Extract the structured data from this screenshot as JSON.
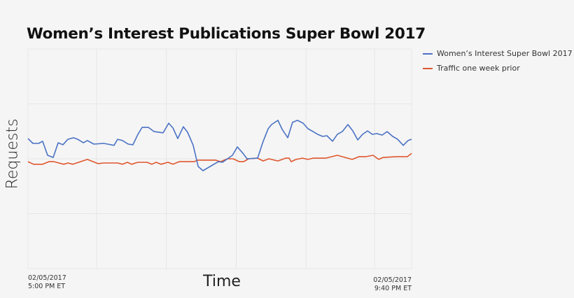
{
  "chart_data": {
    "type": "line",
    "title": "Women’s Interest Publications Super Bowl 2017",
    "xlabel": "Time",
    "ylabel": "Requests",
    "x_unit": "minutes after 02/05/2017 5:00 PM ET",
    "x_ticks": [
      {
        "label_date": "02/05/2017",
        "label_time": "5:00 PM ET",
        "minute": 0
      },
      {
        "label_date": "02/05/2017",
        "label_time": "9:40 PM ET",
        "minute": 280
      }
    ],
    "xlim": [
      0,
      280
    ],
    "ylim": [
      0,
      100
    ],
    "y_note": "relative scale (no numeric y tick labels shown)",
    "grid": true,
    "y_gridlines": [
      0,
      25,
      50,
      75,
      100
    ],
    "x_gridlines": [
      0,
      50,
      101,
      152,
      203,
      253,
      280
    ],
    "legend_position": "top-right, outside plot",
    "series": [
      {
        "name": "Women’s Interest Super Bowl 2017",
        "color": "#4a72c4",
        "x": [
          0,
          3.6,
          7.7,
          10.7,
          14.3,
          18.4,
          22.0,
          25.5,
          29.1,
          33.2,
          36.3,
          40.4,
          43.4,
          48.0,
          55.2,
          58.2,
          62.8,
          65.4,
          69.0,
          73.1,
          76.6,
          80.2,
          83.3,
          87.9,
          92.0,
          98.6,
          102.7,
          105.8,
          109.3,
          113.4,
          116.5,
          120.6,
          124.2,
          127.7,
          139.0,
          142.0,
          149.2,
          152.8,
          156.9,
          159.9,
          167.6,
          171.7,
          175.3,
          177.8,
          182.4,
          185.5,
          189.6,
          193.1,
          196.7,
          200.8,
          204.4,
          208.0,
          211.5,
          215.1,
          218.2,
          222.3,
          225.8,
          229.4,
          233.5,
          237.1,
          240.7,
          244.2,
          247.8,
          251.4,
          254.5,
          258.5,
          262.1,
          266.2,
          269.8,
          273.9,
          277.4,
          280.0
        ],
        "values": [
          59.2,
          57.0,
          57.0,
          58.0,
          51.6,
          50.6,
          57.3,
          56.4,
          58.9,
          59.6,
          58.9,
          57.3,
          58.3,
          56.7,
          57.0,
          56.7,
          56.1,
          58.9,
          58.3,
          56.7,
          56.4,
          61.1,
          64.3,
          64.3,
          62.4,
          61.8,
          66.2,
          64.0,
          59.2,
          64.6,
          62.1,
          56.1,
          46.5,
          44.6,
          48.7,
          48.4,
          51.6,
          55.4,
          52.5,
          50.0,
          50.3,
          58.0,
          63.7,
          65.6,
          67.5,
          63.4,
          59.6,
          66.6,
          67.5,
          66.2,
          63.7,
          62.4,
          61.1,
          60.2,
          60.5,
          58.0,
          61.1,
          62.4,
          65.6,
          62.7,
          58.6,
          61.1,
          62.7,
          61.1,
          61.5,
          60.8,
          62.4,
          60.2,
          58.9,
          56.1,
          58.3,
          58.9
        ]
      },
      {
        "name": "Traffic one week prior",
        "color": "#e0572e",
        "x": [
          0,
          4.1,
          10.7,
          15.3,
          18.9,
          26.1,
          29.1,
          32.7,
          43.4,
          51.1,
          55.2,
          65.4,
          69.0,
          72.6,
          75.6,
          80.2,
          86.9,
          90.4,
          93.5,
          97.1,
          102.2,
          105.8,
          110.4,
          121.1,
          124.2,
          136.9,
          140.5,
          145.6,
          149.7,
          154.3,
          157.4,
          161.0,
          167.6,
          171.7,
          175.8,
          182.4,
          188.0,
          190.6,
          192.1,
          195.7,
          200.3,
          204.4,
          208.0,
          217.2,
          225.8,
          236.6,
          241.7,
          246.8,
          251.9,
          256.0,
          259.1,
          269.3,
          277.0,
          280.0
        ],
        "values": [
          48.7,
          47.5,
          47.5,
          48.7,
          48.7,
          47.5,
          48.1,
          47.5,
          49.7,
          47.8,
          48.1,
          48.1,
          47.5,
          48.4,
          47.5,
          48.4,
          48.4,
          47.5,
          48.4,
          47.5,
          48.4,
          47.5,
          48.7,
          48.7,
          49.4,
          49.4,
          48.7,
          50.0,
          50.0,
          48.7,
          48.7,
          50.0,
          50.3,
          49.0,
          50.0,
          49.0,
          50.3,
          50.3,
          48.7,
          49.7,
          50.3,
          49.7,
          50.3,
          50.3,
          51.6,
          49.7,
          51.0,
          51.0,
          51.6,
          49.7,
          50.6,
          51.0,
          51.0,
          52.5
        ]
      }
    ]
  },
  "legend": {
    "items": [
      {
        "label": "Women’s Interest Super Bowl 2017",
        "color": "#4a72c4"
      },
      {
        "label": "Traffic one week prior",
        "color": "#e0572e"
      }
    ]
  },
  "axes": {
    "x_start_date": "02/05/2017",
    "x_start_time": "5:00 PM ET",
    "x_end_date": "02/05/2017",
    "x_end_time": "9:40 PM ET"
  },
  "colors": {
    "background": "#f5f5f5",
    "grid": "#e6e6e6"
  }
}
